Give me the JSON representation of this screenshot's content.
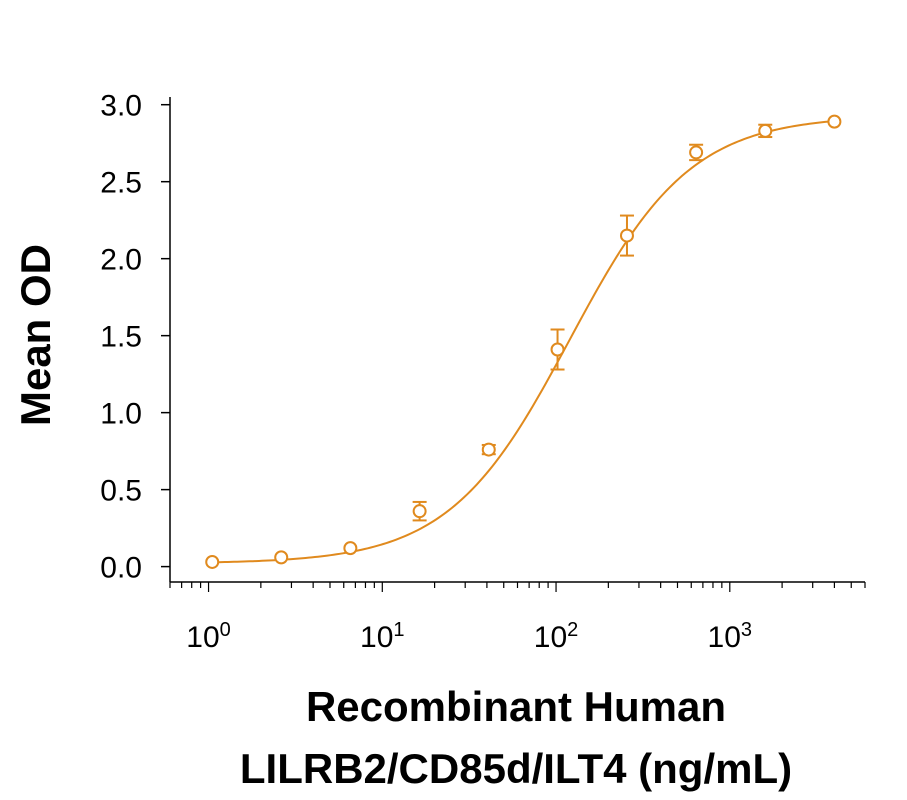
{
  "chart_data": {
    "type": "scatter",
    "title": "",
    "xlabel_lines": [
      "Recombinant Human",
      "LILRB2/CD85d/ILT4 (ng/mL)"
    ],
    "ylabel": "Mean OD",
    "x_scale": "log",
    "xlim": [
      0.6,
      6000
    ],
    "ylim": [
      -0.1,
      3.05
    ],
    "x_ticks": [
      {
        "value": 1,
        "base": "10",
        "exp": "0"
      },
      {
        "value": 10,
        "base": "10",
        "exp": "1"
      },
      {
        "value": 100,
        "base": "10",
        "exp": "2"
      },
      {
        "value": 1000,
        "base": "10",
        "exp": "3"
      }
    ],
    "y_ticks": [
      {
        "value": 0.0,
        "label": "0.0"
      },
      {
        "value": 0.5,
        "label": "0.5"
      },
      {
        "value": 1.0,
        "label": "1.0"
      },
      {
        "value": 1.5,
        "label": "1.5"
      },
      {
        "value": 2.0,
        "label": "2.0"
      },
      {
        "value": 2.5,
        "label": "2.5"
      },
      {
        "value": 3.0,
        "label": "3.0"
      }
    ],
    "grid": false,
    "color": "#E08A1E",
    "series": [
      {
        "points": [
          {
            "x": 1.05,
            "y": 0.03,
            "err": 0.0
          },
          {
            "x": 2.62,
            "y": 0.06,
            "err": 0.0
          },
          {
            "x": 6.55,
            "y": 0.12,
            "err": 0.0
          },
          {
            "x": 16.4,
            "y": 0.36,
            "err": 0.06
          },
          {
            "x": 41.0,
            "y": 0.76,
            "err": 0.03
          },
          {
            "x": 102,
            "y": 1.41,
            "err": 0.13
          },
          {
            "x": 256,
            "y": 2.15,
            "err": 0.13
          },
          {
            "x": 640,
            "y": 2.69,
            "err": 0.05
          },
          {
            "x": 1600,
            "y": 2.83,
            "err": 0.04
          },
          {
            "x": 4000,
            "y": 2.89,
            "err": 0.0
          }
        ],
        "fit": {
          "type": "4PL",
          "bottom": 0.02,
          "top": 2.93,
          "ec50": 120,
          "hill": 1.25
        }
      }
    ]
  }
}
